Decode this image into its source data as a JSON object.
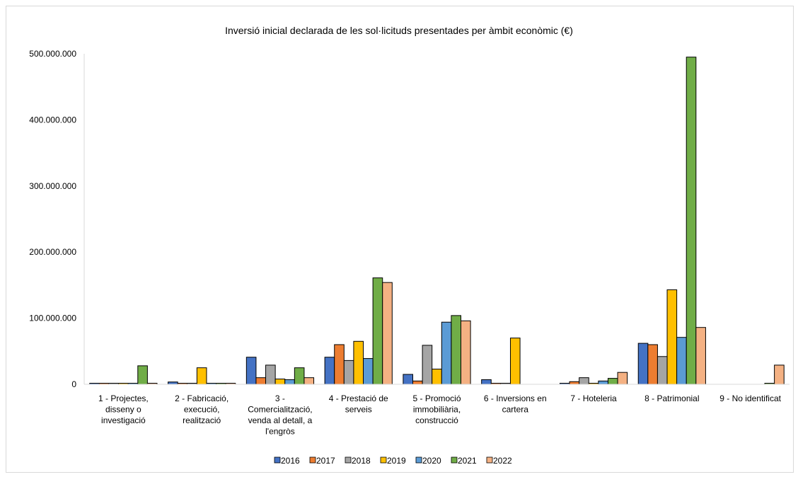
{
  "chart_data": {
    "type": "bar",
    "title": "Inversió  inicial declarada  de les sol·licituds presentades per àmbit econòmic (€)",
    "xlabel": "",
    "ylabel": "",
    "ylim": [
      0,
      500000000
    ],
    "y_ticks": [
      0,
      100000000,
      200000000,
      300000000,
      400000000,
      500000000
    ],
    "y_tick_labels": [
      "0",
      "100.000.000",
      "200.000.000",
      "300.000.000",
      "400.000.000",
      "500.000.000"
    ],
    "grid": false,
    "legend_position": "bottom",
    "categories": [
      [
        "1 - Projectes,",
        "disseny o",
        "investigació"
      ],
      [
        "2 - Fabricació,",
        "execució,",
        "realització"
      ],
      [
        "3 -",
        "Comercialització,",
        "venda al detall, a",
        "l'engròs"
      ],
      [
        "4 - Prestació de",
        "serveis"
      ],
      [
        "5 - Promoció",
        "immobiliària,",
        "construcció"
      ],
      [
        "6 - Inversions en",
        "cartera"
      ],
      [
        "7 - Hoteleria"
      ],
      [
        "8 - Patrimonial"
      ],
      [
        "9 - No identificat"
      ]
    ],
    "series": [
      {
        "name": "2016",
        "color": "#4472c4",
        "values": [
          1000000,
          3500000,
          41000000,
          41000000,
          15000000,
          7000000,
          1500000,
          62000000,
          0
        ]
      },
      {
        "name": "2017",
        "color": "#ed7d31",
        "values": [
          1000000,
          1500000,
          10000000,
          60000000,
          5000000,
          1500000,
          4000000,
          60000000,
          0
        ]
      },
      {
        "name": "2018",
        "color": "#a5a5a5",
        "values": [
          1000000,
          1500000,
          29000000,
          36000000,
          59000000,
          1500000,
          10000000,
          42000000,
          0
        ]
      },
      {
        "name": "2019",
        "color": "#ffc000",
        "values": [
          1000000,
          25000000,
          8000000,
          65000000,
          23000000,
          70000000,
          1500000,
          143000000,
          0
        ]
      },
      {
        "name": "2020",
        "color": "#5b9bd5",
        "values": [
          1000000,
          1500000,
          7000000,
          39000000,
          94000000,
          0,
          5000000,
          71000000,
          0
        ]
      },
      {
        "name": "2021",
        "color": "#70ad47",
        "values": [
          28000000,
          1500000,
          25000000,
          161000000,
          104000000,
          0,
          9000000,
          495000000,
          1500000
        ]
      },
      {
        "name": "2022",
        "color": "#f4b183",
        "values": [
          1000000,
          1500000,
          10000000,
          154000000,
          96000000,
          0,
          18000000,
          86000000,
          29000000
        ]
      }
    ]
  }
}
